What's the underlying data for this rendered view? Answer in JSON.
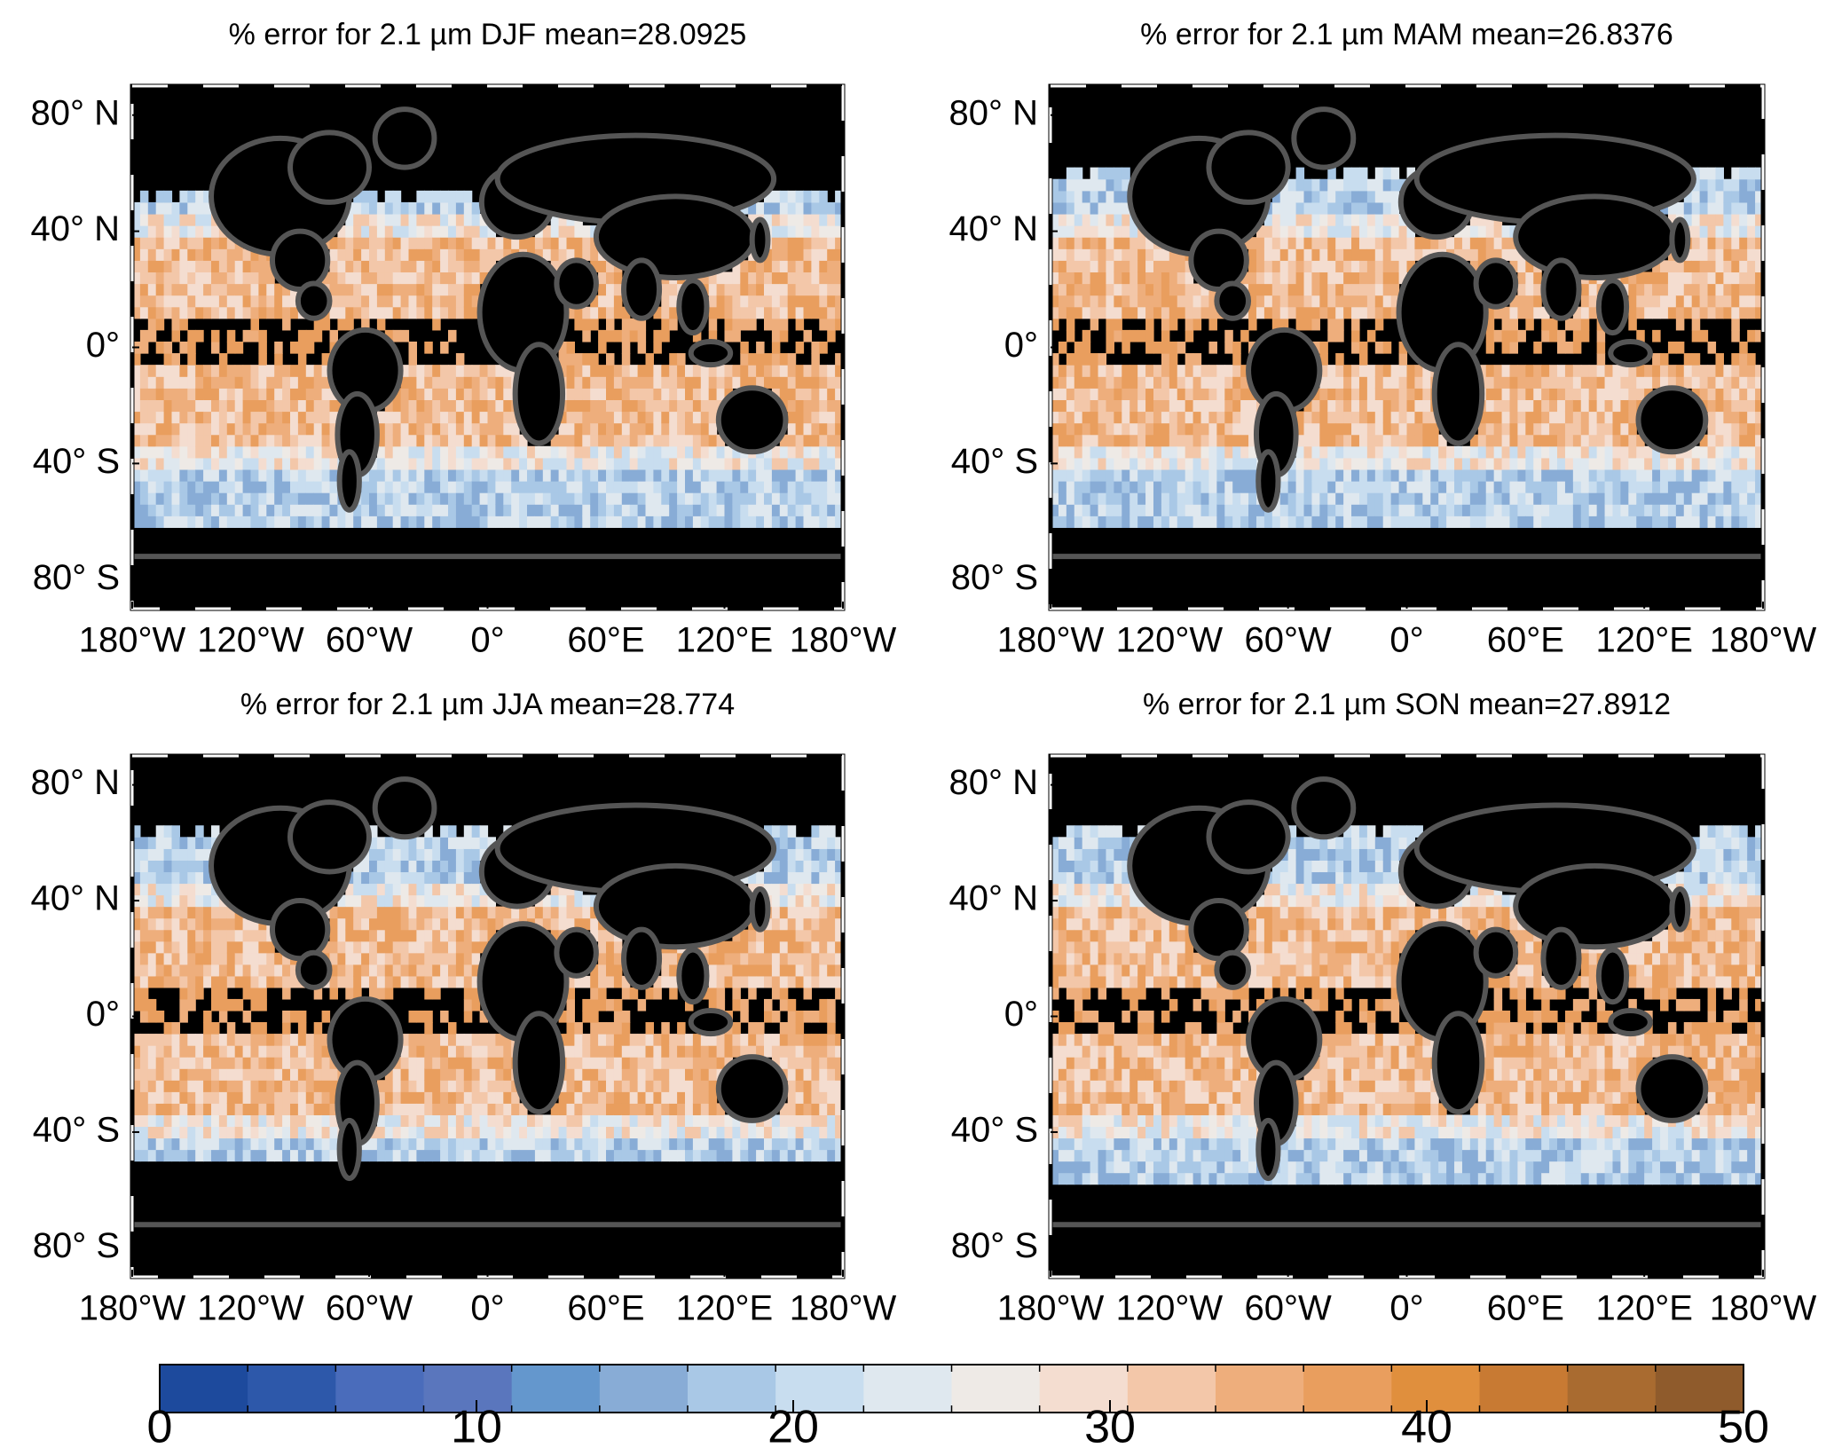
{
  "chart_data": [
    {
      "type": "map",
      "title": "% error for 2.1 µm DJF  mean=28.0925",
      "xlim": [
        -180,
        180
      ],
      "ylim": [
        -90,
        90
      ],
      "xticks": [
        {
          "value": -180,
          "label": "180°W"
        },
        {
          "value": -120,
          "label": "120°W"
        },
        {
          "value": -60,
          "label": "60°W"
        },
        {
          "value": 0,
          "label": "0°"
        },
        {
          "value": 60,
          "label": "60°E"
        },
        {
          "value": 120,
          "label": "120°E"
        },
        {
          "value": 180,
          "label": "180°W"
        }
      ],
      "yticks": [
        {
          "value": 80,
          "label": "80° N"
        },
        {
          "value": 40,
          "label": "40° N"
        },
        {
          "value": 0,
          "label": "0°"
        },
        {
          "value": -40,
          "label": "40° S"
        },
        {
          "value": -80,
          "label": "80° S"
        }
      ]
    },
    {
      "type": "map",
      "title": "% error for 2.1 µm MAM  mean=26.8376",
      "xlim": [
        -180,
        180
      ],
      "ylim": [
        -90,
        90
      ],
      "xticks": [
        {
          "value": -180,
          "label": "180°W"
        },
        {
          "value": -120,
          "label": "120°W"
        },
        {
          "value": -60,
          "label": "60°W"
        },
        {
          "value": 0,
          "label": "0°"
        },
        {
          "value": 60,
          "label": "60°E"
        },
        {
          "value": 120,
          "label": "120°E"
        },
        {
          "value": 180,
          "label": "180°W"
        }
      ],
      "yticks": [
        {
          "value": 80,
          "label": "80° N"
        },
        {
          "value": 40,
          "label": "40° N"
        },
        {
          "value": 0,
          "label": "0°"
        },
        {
          "value": -40,
          "label": "40° S"
        },
        {
          "value": -80,
          "label": "80° S"
        }
      ]
    },
    {
      "type": "map",
      "title": "% error for 2.1  µm JJA  mean=28.774",
      "xlim": [
        -180,
        180
      ],
      "ylim": [
        -90,
        90
      ],
      "xticks": [
        {
          "value": -180,
          "label": "180°W"
        },
        {
          "value": -120,
          "label": "120°W"
        },
        {
          "value": -60,
          "label": "60°W"
        },
        {
          "value": 0,
          "label": "0°"
        },
        {
          "value": 60,
          "label": "60°E"
        },
        {
          "value": 120,
          "label": "120°E"
        },
        {
          "value": 180,
          "label": "180°W"
        }
      ],
      "yticks": [
        {
          "value": 80,
          "label": "80° N"
        },
        {
          "value": 40,
          "label": "40° N"
        },
        {
          "value": 0,
          "label": "0°"
        },
        {
          "value": -40,
          "label": "40° S"
        },
        {
          "value": -80,
          "label": "80° S"
        }
      ]
    },
    {
      "type": "map",
      "title": "% error for 2.1 µm SON  mean=27.8912",
      "xlim": [
        -180,
        180
      ],
      "ylim": [
        -90,
        90
      ],
      "xticks": [
        {
          "value": -180,
          "label": "180°W"
        },
        {
          "value": -120,
          "label": "120°W"
        },
        {
          "value": -60,
          "label": "60°W"
        },
        {
          "value": 0,
          "label": "0°"
        },
        {
          "value": 60,
          "label": "60°E"
        },
        {
          "value": 120,
          "label": "120°E"
        },
        {
          "value": 180,
          "label": "180°W"
        }
      ],
      "yticks": [
        {
          "value": 80,
          "label": "80° N"
        },
        {
          "value": 40,
          "label": "40° N"
        },
        {
          "value": 0,
          "label": "0°"
        },
        {
          "value": -40,
          "label": "40° S"
        },
        {
          "value": -80,
          "label": "80° S"
        }
      ]
    },
    {
      "type": "colorbar",
      "xlim": [
        0,
        50
      ],
      "xticks": [
        0,
        10,
        20,
        30,
        40,
        50
      ],
      "colors": [
        "#1d4a9d",
        "#2d58aa",
        "#4a6cbb",
        "#5a76bd",
        "#6497cd",
        "#88acd6",
        "#a9c8e6",
        "#c8ddef",
        "#dfe8ef",
        "#eeeae6",
        "#f4ddd0",
        "#f3c7a9",
        "#eeae7c",
        "#e99e5e",
        "#e08f3d",
        "#c87a33",
        "#a96b30",
        "#8f5b2c"
      ]
    }
  ]
}
